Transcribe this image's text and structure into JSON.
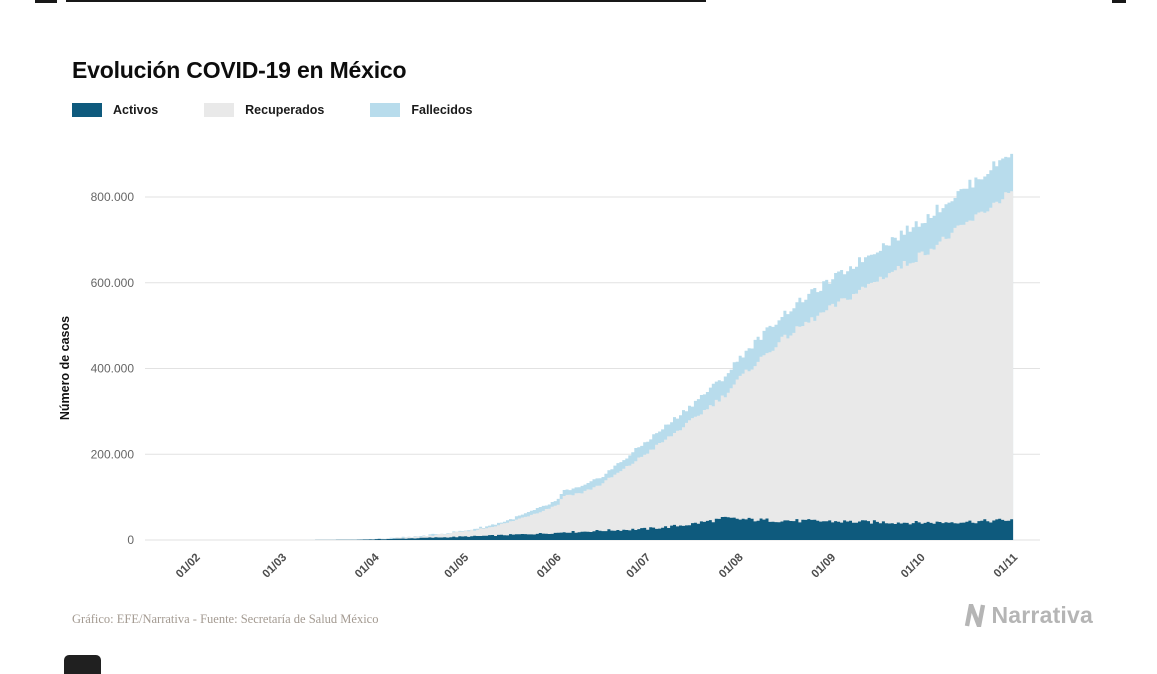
{
  "page": {
    "title": "Evolución COVID-19 en México",
    "footer_source": "Gráfico: EFE/Narrativa - Fuente: Secretaría de Salud México",
    "brand": "Narrativa"
  },
  "legend": [
    {
      "label": "Activos",
      "color": "#0e5a7d"
    },
    {
      "label": "Recuperados",
      "color": "#e9e9e9"
    },
    {
      "label": "Fallecidos",
      "color": "#b8dcec"
    }
  ],
  "chart_data": {
    "type": "area",
    "stacked": true,
    "title": "Evolución COVID-19 en México",
    "xlabel": "",
    "ylabel": "Número de casos",
    "ylim": [
      0,
      910000
    ],
    "grid": "horizontal",
    "legend_position": "top-left",
    "ytick_values": [
      0,
      200000,
      400000,
      600000,
      800000
    ],
    "ytick_labels": [
      "0",
      "200.000",
      "400.000",
      "600.000",
      "800.000"
    ],
    "xtick_labels": [
      "01/02",
      "01/03",
      "01/04",
      "01/05",
      "01/06",
      "01/07",
      "01/08",
      "01/09",
      "01/10",
      "01/11"
    ],
    "xtick_days": [
      17,
      46,
      77,
      107,
      138,
      168,
      199,
      230,
      260,
      291
    ],
    "x_domain_days": [
      0,
      300
    ],
    "x_unit": "days since chart origin (mid-January 2020)",
    "series_order_bottom_to_top": [
      "Activos",
      "Recuperados",
      "Fallecidos"
    ],
    "series": [
      {
        "name": "Activos",
        "color": "#0e5a7d",
        "anchor_index": 1
      },
      {
        "name": "Recuperados",
        "color": "#e9e9e9",
        "anchor_index": 2
      },
      {
        "name": "Fallecidos",
        "color": "#b8dcec",
        "anchor_index": 3
      }
    ],
    "anchor_columns": [
      "day",
      "activos",
      "recuperados",
      "fallecidos"
    ],
    "anchors": [
      [
        0,
        0,
        0,
        0
      ],
      [
        45,
        20,
        3,
        1
      ],
      [
        60,
        150,
        35,
        5
      ],
      [
        70,
        700,
        180,
        25
      ],
      [
        77,
        1700,
        700,
        110
      ],
      [
        84,
        2800,
        1700,
        280
      ],
      [
        91,
        4400,
        3000,
        560
      ],
      [
        98,
        6000,
        6500,
        1150
      ],
      [
        107,
        8000,
        11800,
        2000
      ],
      [
        114,
        9800,
        18500,
        3300
      ],
      [
        121,
        11800,
        28500,
        4900
      ],
      [
        128,
        13800,
        43000,
        7000
      ],
      [
        134,
        15500,
        56000,
        8800
      ],
      [
        138,
        16800,
        67000,
        10000
      ],
      [
        140,
        18800,
        85000,
        11100
      ],
      [
        146,
        19200,
        91000,
        13200
      ],
      [
        152,
        21800,
        107000,
        16600
      ],
      [
        160,
        23800,
        141000,
        22600
      ],
      [
        168,
        26200,
        178000,
        28100
      ],
      [
        175,
        30500,
        208000,
        32200
      ],
      [
        182,
        36500,
        238000,
        36600
      ],
      [
        189,
        44500,
        268000,
        40600
      ],
      [
        194,
        50500,
        288000,
        44000
      ],
      [
        199,
        48500,
        330000,
        47700
      ],
      [
        206,
        46500,
        376000,
        52200
      ],
      [
        213,
        45500,
        421000,
        56700
      ],
      [
        220,
        44500,
        456000,
        60800
      ],
      [
        230,
        43500,
        500000,
        64900
      ],
      [
        237,
        42500,
        530000,
        68100
      ],
      [
        244,
        41800,
        561000,
        71600
      ],
      [
        252,
        40800,
        593000,
        75200
      ],
      [
        260,
        40300,
        626000,
        78600
      ],
      [
        267,
        41200,
        658000,
        81700
      ],
      [
        274,
        42500,
        691000,
        84800
      ],
      [
        281,
        43800,
        723000,
        87700
      ],
      [
        291,
        47500,
        773000,
        92300
      ]
    ]
  }
}
